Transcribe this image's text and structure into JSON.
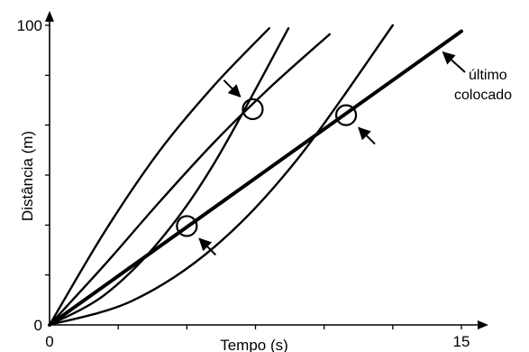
{
  "chart_data": {
    "type": "line",
    "title": "",
    "xlabel": "Tempo (s)",
    "ylabel": "Distância (m)",
    "xlim": [
      0,
      15
    ],
    "ylim": [
      0,
      100
    ],
    "x_ticks": [
      {
        "value": 0,
        "label": "0"
      },
      {
        "value": 2.5,
        "label": ""
      },
      {
        "value": 5,
        "label": ""
      },
      {
        "value": 7.5,
        "label": ""
      },
      {
        "value": 10,
        "label": ""
      },
      {
        "value": 12.5,
        "label": ""
      },
      {
        "value": 15,
        "label": "15"
      }
    ],
    "y_ticks": [
      {
        "value": 0,
        "label": "0"
      },
      {
        "value": 16.7,
        "label": ""
      },
      {
        "value": 33.3,
        "label": ""
      },
      {
        "value": 50,
        "label": ""
      },
      {
        "value": 66.7,
        "label": ""
      },
      {
        "value": 83.3,
        "label": ""
      },
      {
        "value": 100,
        "label": "100"
      }
    ],
    "grid": false,
    "series": [
      {
        "key": "c1",
        "emphasis": false,
        "x": [
          0,
          2,
          4,
          6,
          8
        ],
        "y": [
          0,
          31,
          58,
          80,
          99
        ]
      },
      {
        "key": "c2",
        "emphasis": false,
        "x": [
          0,
          2,
          4,
          6,
          8,
          10.2
        ],
        "y": [
          0,
          20,
          41,
          61,
          79,
          97
        ]
      },
      {
        "key": "c3",
        "emphasis": false,
        "x": [
          0,
          2,
          4,
          6,
          8.7
        ],
        "y": [
          0,
          10,
          28,
          54,
          99
        ]
      },
      {
        "key": "c4",
        "emphasis": false,
        "x": [
          0,
          3,
          6,
          9,
          12.5
        ],
        "y": [
          0,
          8,
          26,
          55,
          100
        ]
      },
      {
        "key": "ultimo",
        "emphasis": true,
        "x": [
          0,
          15
        ],
        "y": [
          0,
          98
        ]
      }
    ],
    "annotations": [
      {
        "x": 5,
        "y": 33,
        "label": ""
      },
      {
        "x": 7.4,
        "y": 72,
        "label": ""
      },
      {
        "x": 10.8,
        "y": 70,
        "label": ""
      }
    ],
    "annotation_text": {
      "line1": "último",
      "line2": "colocado"
    }
  }
}
